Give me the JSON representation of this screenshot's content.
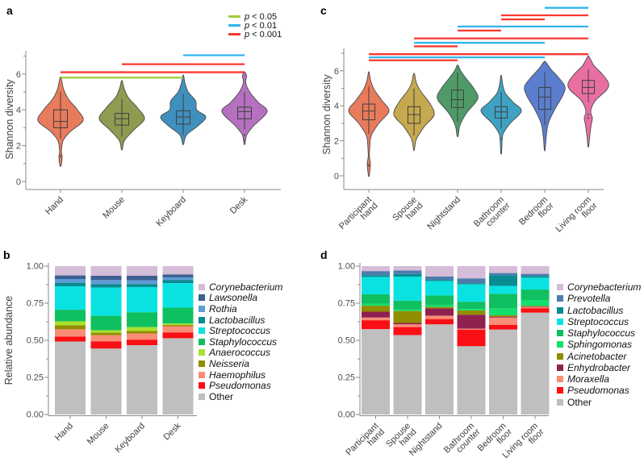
{
  "significance_legend": {
    "items": [
      {
        "label": "p < 0.05",
        "color": "#A2CC3A"
      },
      {
        "label": "p < 0.01",
        "color": "#33B4EF"
      },
      {
        "label": "p < 0.001",
        "color": "#F9382E"
      }
    ]
  },
  "chart_data": [
    {
      "panel": "a",
      "type": "violin",
      "ylabel": "Shannon diversity",
      "ylim": [
        0,
        7.3
      ],
      "yticks": [
        0,
        2,
        4,
        6
      ],
      "categories": [
        "Hand",
        "Mouse",
        "Keyboard",
        "Desk"
      ],
      "violins": [
        {
          "category": "Hand",
          "color": "#E87B5C",
          "profile": [
            [
              0.9,
              0.03
            ],
            [
              1.4,
              0.07
            ],
            [
              1.7,
              0.04
            ],
            [
              2.3,
              0.12
            ],
            [
              2.8,
              0.45
            ],
            [
              3.4,
              1.0
            ],
            [
              4.0,
              0.75
            ],
            [
              4.6,
              0.35
            ],
            [
              5.1,
              0.15
            ],
            [
              5.5,
              0.07
            ],
            [
              5.8,
              0.02
            ]
          ],
          "box": {
            "lo": 2.4,
            "q1": 3.0,
            "med": 3.35,
            "q3": 4.0,
            "hi": 5.0
          },
          "dots": [
            1.4
          ]
        },
        {
          "category": "Mouse",
          "color": "#8E9B51",
          "profile": [
            [
              1.8,
              0.02
            ],
            [
              2.3,
              0.12
            ],
            [
              2.9,
              0.55
            ],
            [
              3.5,
              1.0
            ],
            [
              4.1,
              0.7
            ],
            [
              4.7,
              0.28
            ],
            [
              5.2,
              0.1
            ],
            [
              5.6,
              0.02
            ]
          ],
          "box": {
            "lo": 2.5,
            "q1": 3.15,
            "med": 3.5,
            "q3": 3.8,
            "hi": 4.6
          },
          "dots": []
        },
        {
          "category": "Keyboard",
          "color": "#4090BF",
          "profile": [
            [
              2.1,
              0.02
            ],
            [
              2.6,
              0.15
            ],
            [
              3.1,
              0.65
            ],
            [
              3.6,
              1.0
            ],
            [
              4.0,
              0.6
            ],
            [
              4.5,
              0.55
            ],
            [
              5.0,
              0.22
            ],
            [
              5.5,
              0.08
            ],
            [
              5.9,
              0.02
            ]
          ],
          "box": {
            "lo": 2.6,
            "q1": 3.2,
            "med": 3.6,
            "q3": 3.95,
            "hi": 4.9
          },
          "dots": []
        },
        {
          "category": "Desk",
          "color": "#B571BF",
          "profile": [
            [
              2.1,
              0.02
            ],
            [
              2.6,
              0.1
            ],
            [
              3.1,
              0.4
            ],
            [
              3.9,
              1.0
            ],
            [
              4.4,
              0.62
            ],
            [
              4.9,
              0.28
            ],
            [
              5.3,
              0.1
            ],
            [
              5.6,
              0.05
            ],
            [
              5.9,
              0.09
            ],
            [
              6.1,
              0.02
            ]
          ],
          "box": {
            "lo": 2.9,
            "q1": 3.5,
            "med": 3.9,
            "q3": 4.15,
            "hi": 5.0
          },
          "dots": [
            2.6,
            2.3
          ]
        }
      ],
      "significance": [
        {
          "pair": [
            "Keyboard",
            "Desk"
          ],
          "p": "p < 0.01",
          "y": 7.05
        },
        {
          "pair": [
            "Mouse",
            "Desk"
          ],
          "p": "p < 0.001",
          "y": 6.55
        },
        {
          "pair": [
            "Hand",
            "Desk"
          ],
          "p": "p < 0.001",
          "y": 6.1
        },
        {
          "pair": [
            "Hand",
            "Keyboard"
          ],
          "p": "p < 0.05",
          "y": 5.8
        }
      ]
    },
    {
      "panel": "b",
      "type": "stacked-bar",
      "ylabel": "Relative abundance",
      "ylim": [
        0,
        1
      ],
      "yticks": [
        "0.00",
        "0.25",
        "0.50",
        "0.75",
        "1.00"
      ],
      "categories": [
        "Hand",
        "Mouse",
        "Keyboard",
        "Desk"
      ],
      "series": [
        {
          "name": "Corynebacterium",
          "color": "#D5BCD8",
          "values": [
            0.063,
            0.065,
            0.065,
            0.056
          ]
        },
        {
          "name": "Lawsonella",
          "color": "#3C6090",
          "values": [
            0.024,
            0.029,
            0.03,
            0.02
          ]
        },
        {
          "name": "Rothia",
          "color": "#5E9CD6",
          "values": [
            0.025,
            0.027,
            0.026,
            0.017
          ]
        },
        {
          "name": "Lactobacillus",
          "color": "#0A8A92",
          "values": [
            0.024,
            0.024,
            0.02,
            0.022
          ]
        },
        {
          "name": "Streptococcus",
          "color": "#0AE2E2",
          "values": [
            0.158,
            0.19,
            0.17,
            0.165
          ]
        },
        {
          "name": "Staphylococcus",
          "color": "#0FC060",
          "values": [
            0.078,
            0.097,
            0.1,
            0.107
          ]
        },
        {
          "name": "Anaerococcus",
          "color": "#A9E22E",
          "values": [
            0.027,
            0.017,
            0.026,
            0.01
          ]
        },
        {
          "name": "Neisseria",
          "color": "#918D00",
          "values": [
            0.027,
            0.017,
            0.017,
            0.008
          ]
        },
        {
          "name": "Haemophilus",
          "color": "#F98D78",
          "values": [
            0.049,
            0.042,
            0.042,
            0.042
          ]
        },
        {
          "name": "Pseudomonas",
          "color": "#FA0F14",
          "values": [
            0.033,
            0.048,
            0.037,
            0.039
          ]
        },
        {
          "name": "Other",
          "color": "#BFBFBF",
          "values": [
            0.492,
            0.444,
            0.467,
            0.514
          ]
        }
      ]
    },
    {
      "panel": "c",
      "type": "violin",
      "ylabel": "Shannon diversity",
      "ylim": [
        0,
        7.3
      ],
      "yticks": [
        0,
        2,
        4,
        6
      ],
      "categories": [
        "Participant hand",
        "Spouse hand",
        "Nightstand",
        "Bathroom counter",
        "Bedroom floor",
        "Living room floor"
      ],
      "violins": [
        {
          "category": "Participant hand",
          "color": "#E87B5C",
          "profile": [
            [
              0.0,
              0.02
            ],
            [
              0.4,
              0.06
            ],
            [
              0.7,
              0.08
            ],
            [
              1.1,
              0.03
            ],
            [
              1.7,
              0.05
            ],
            [
              2.3,
              0.12
            ],
            [
              3.0,
              0.5
            ],
            [
              3.7,
              1.0
            ],
            [
              4.3,
              0.65
            ],
            [
              4.9,
              0.28
            ],
            [
              5.4,
              0.1
            ],
            [
              5.9,
              0.02
            ]
          ],
          "box": {
            "lo": 2.4,
            "q1": 3.2,
            "med": 3.7,
            "q3": 4.1,
            "hi": 5.1
          },
          "dots": [
            0.6
          ]
        },
        {
          "category": "Spouse hand",
          "color": "#C6A84E",
          "profile": [
            [
              1.5,
              0.02
            ],
            [
              2.1,
              0.12
            ],
            [
              2.8,
              0.5
            ],
            [
              3.5,
              1.0
            ],
            [
              4.2,
              0.75
            ],
            [
              4.8,
              0.35
            ],
            [
              5.3,
              0.12
            ],
            [
              5.8,
              0.03
            ]
          ],
          "box": {
            "lo": 2.3,
            "q1": 3.0,
            "med": 3.5,
            "q3": 3.95,
            "hi": 5.0
          },
          "dots": []
        },
        {
          "category": "Nightstand",
          "color": "#4F9B68",
          "profile": [
            [
              2.3,
              0.03
            ],
            [
              2.9,
              0.12
            ],
            [
              3.6,
              0.45
            ],
            [
              4.4,
              1.0
            ],
            [
              5.0,
              0.8
            ],
            [
              5.6,
              0.4
            ],
            [
              6.0,
              0.15
            ],
            [
              6.3,
              0.03
            ]
          ],
          "box": {
            "lo": 3.1,
            "q1": 3.9,
            "med": 4.35,
            "q3": 4.9,
            "hi": 5.9
          },
          "dots": []
        },
        {
          "category": "Bathroom counter",
          "color": "#3EA2C3",
          "profile": [
            [
              1.3,
              0.02
            ],
            [
              1.8,
              0.04
            ],
            [
              2.4,
              0.1
            ],
            [
              3.0,
              0.45
            ],
            [
              3.7,
              1.0
            ],
            [
              4.2,
              0.6
            ],
            [
              4.7,
              0.22
            ],
            [
              5.2,
              0.08
            ],
            [
              5.7,
              0.02
            ]
          ],
          "box": {
            "lo": 2.7,
            "q1": 3.3,
            "med": 3.65,
            "q3": 3.95,
            "hi": 4.8
          },
          "dots": [
            2.1
          ]
        },
        {
          "category": "Bedroom floor",
          "color": "#5A7ECD",
          "profile": [
            [
              1.5,
              0.02
            ],
            [
              2.2,
              0.07
            ],
            [
              3.0,
              0.18
            ],
            [
              3.8,
              0.5
            ],
            [
              4.6,
              0.9
            ],
            [
              5.1,
              1.0
            ],
            [
              5.6,
              0.7
            ],
            [
              6.1,
              0.3
            ],
            [
              6.5,
              0.05
            ]
          ],
          "box": {
            "lo": 2.9,
            "q1": 3.8,
            "med": 4.5,
            "q3": 5.05,
            "hi": 5.9
          },
          "dots": []
        },
        {
          "category": "Living room floor",
          "color": "#E86FA2",
          "profile": [
            [
              1.7,
              0.02
            ],
            [
              2.3,
              0.07
            ],
            [
              2.9,
              0.14
            ],
            [
              3.3,
              0.2
            ],
            [
              3.7,
              0.12
            ],
            [
              4.3,
              0.35
            ],
            [
              4.9,
              0.9
            ],
            [
              5.3,
              1.0
            ],
            [
              5.8,
              0.7
            ],
            [
              6.3,
              0.28
            ],
            [
              6.8,
              0.04
            ]
          ],
          "box": {
            "lo": 4.2,
            "q1": 4.7,
            "med": 5.05,
            "q3": 5.45,
            "hi": 6.1
          },
          "dots": [
            3.5,
            3.3
          ]
        }
      ],
      "significance": [
        {
          "pair": [
            "Bedroom floor",
            "Living room floor"
          ],
          "p": "p < 0.01",
          "y": 9.6
        },
        {
          "pair": [
            "Bathroom counter",
            "Living room floor"
          ],
          "p": "p < 0.001",
          "y": 9.17
        },
        {
          "pair": [
            "Bathroom counter",
            "Bedroom floor"
          ],
          "p": "p < 0.001",
          "y": 8.94
        },
        {
          "pair": [
            "Nightstand",
            "Living room floor"
          ],
          "p": "p < 0.01",
          "y": 8.53
        },
        {
          "pair": [
            "Nightstand",
            "Bathroom counter"
          ],
          "p": "p < 0.001",
          "y": 8.3
        },
        {
          "pair": [
            "Spouse hand",
            "Living room floor"
          ],
          "p": "p < 0.001",
          "y": 7.85
        },
        {
          "pair": [
            "Spouse hand",
            "Bedroom floor"
          ],
          "p": "p < 0.01",
          "y": 7.6
        },
        {
          "pair": [
            "Spouse hand",
            "Nightstand"
          ],
          "p": "p < 0.001",
          "y": 7.4
        },
        {
          "pair": [
            "Participant hand",
            "Living room floor"
          ],
          "p": "p < 0.001",
          "y": 6.95
        },
        {
          "pair": [
            "Participant hand",
            "Bedroom floor"
          ],
          "p": "p < 0.01",
          "y": 6.77
        },
        {
          "pair": [
            "Participant hand",
            "Nightstand"
          ],
          "p": "p < 0.001",
          "y": 6.6
        }
      ]
    },
    {
      "panel": "d",
      "type": "stacked-bar",
      "ylabel": "",
      "ylim": [
        0,
        1
      ],
      "yticks": [
        "0.00",
        "0.25",
        "0.50",
        "0.75",
        "1.00"
      ],
      "categories": [
        "Participant hand",
        "Spouse hand",
        "Nightstand",
        "Bathroom counter",
        "Bedroom floor",
        "Living room floor"
      ],
      "series": [
        {
          "name": "Corynebacterium",
          "color": "#D5BCD8",
          "values": [
            0.034,
            0.03,
            0.07,
            0.083,
            0.047,
            0.052
          ]
        },
        {
          "name": "Prevotella",
          "color": "#4C7CAC",
          "values": [
            0.027,
            0.023,
            0.023,
            0.032,
            0.014,
            0.014
          ]
        },
        {
          "name": "Lactobacillus",
          "color": "#0A8A92",
          "values": [
            0.012,
            0.018,
            0.008,
            0.008,
            0.072,
            0.012
          ]
        },
        {
          "name": "Streptococcus",
          "color": "#0AE2E2",
          "values": [
            0.117,
            0.162,
            0.097,
            0.117,
            0.054,
            0.08
          ]
        },
        {
          "name": "Staphylococcus",
          "color": "#0FC060",
          "values": [
            0.063,
            0.06,
            0.065,
            0.049,
            0.1,
            0.07
          ]
        },
        {
          "name": "Sphingomonas",
          "color": "#12E06E",
          "values": [
            0.014,
            0.01,
            0.012,
            0.01,
            0.044,
            0.04
          ]
        },
        {
          "name": "Acinetobacter",
          "color": "#918D00",
          "values": [
            0.04,
            0.08,
            0.01,
            0.029,
            0.01,
            0.004
          ]
        },
        {
          "name": "Enhydrobacter",
          "color": "#8E2150",
          "values": [
            0.04,
            0.01,
            0.049,
            0.094,
            0.006,
            0.004
          ]
        },
        {
          "name": "Moraxella",
          "color": "#F98D78",
          "values": [
            0.018,
            0.018,
            0.023,
            0.006,
            0.049,
            0.008
          ]
        },
        {
          "name": "Pseudomonas",
          "color": "#FA0F14",
          "values": [
            0.06,
            0.054,
            0.036,
            0.112,
            0.032,
            0.03
          ]
        },
        {
          "name": "Other",
          "color": "#BFBFBF",
          "values": [
            0.575,
            0.535,
            0.607,
            0.46,
            0.572,
            0.686
          ]
        }
      ]
    }
  ]
}
